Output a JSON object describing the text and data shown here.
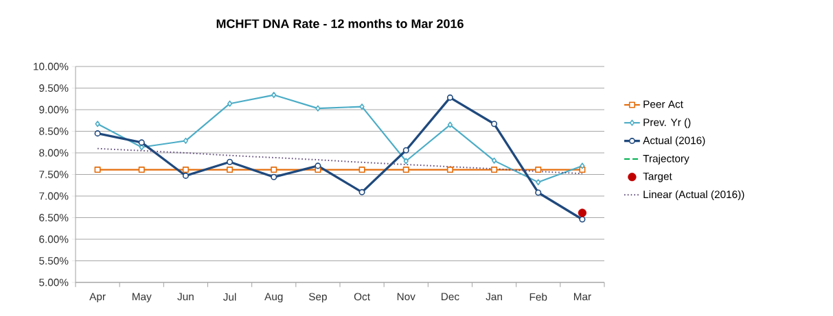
{
  "chart_data": {
    "type": "line",
    "title": "MCHFT DNA Rate - 12 months to Mar 2016",
    "categories": [
      "Apr",
      "May",
      "Jun",
      "Jul",
      "Aug",
      "Sep",
      "Oct",
      "Nov",
      "Dec",
      "Jan",
      "Feb",
      "Mar"
    ],
    "series": [
      {
        "name": "Peer Act",
        "color": "#e46c0a",
        "marker": "square",
        "line_style": "solid",
        "values": [
          7.61,
          7.61,
          7.61,
          7.61,
          7.61,
          7.61,
          7.61,
          7.61,
          7.61,
          7.61,
          7.61,
          7.61
        ]
      },
      {
        "name": "Prev. Yr ()",
        "color": "#4bacc6",
        "marker": "diamond",
        "line_style": "solid",
        "values": [
          8.67,
          8.13,
          8.28,
          9.14,
          9.34,
          9.03,
          9.07,
          7.81,
          8.65,
          7.82,
          7.32,
          7.7
        ]
      },
      {
        "name": "Actual (2016)",
        "color": "#1f497d",
        "marker": "circle",
        "line_style": "solid",
        "values": [
          8.45,
          8.24,
          7.47,
          7.79,
          7.44,
          7.7,
          7.09,
          8.06,
          9.28,
          8.67,
          7.08,
          6.46
        ]
      },
      {
        "name": "Trajectory",
        "color": "#00b050",
        "marker": "none",
        "line_style": "dashed",
        "values": [
          null,
          null,
          null,
          null,
          null,
          null,
          null,
          null,
          null,
          null,
          null,
          null
        ]
      },
      {
        "name": "Target",
        "type": "scatter",
        "color": "#c00000",
        "marker": "circle",
        "values": [
          null,
          null,
          null,
          null,
          null,
          null,
          null,
          null,
          null,
          null,
          null,
          6.61
        ]
      },
      {
        "name": "Linear (Actual (2016))",
        "color": "#604a7b",
        "marker": "none",
        "line_style": "dotted",
        "values": [
          8.1,
          8.05,
          8.0,
          7.94,
          7.89,
          7.84,
          7.78,
          7.73,
          7.68,
          7.63,
          7.57,
          7.52
        ]
      }
    ],
    "ylim": [
      5,
      10
    ],
    "yticks": [
      {
        "value": 5,
        "label": "5.00%"
      },
      {
        "value": 5.5,
        "label": "5.50%"
      },
      {
        "value": 6,
        "label": "6.00%"
      },
      {
        "value": 6.5,
        "label": "6.50%"
      },
      {
        "value": 7,
        "label": "7.00%"
      },
      {
        "value": 7.5,
        "label": "7.50%"
      },
      {
        "value": 8,
        "label": "8.00%"
      },
      {
        "value": 8.5,
        "label": "8.50%"
      },
      {
        "value": 9,
        "label": "9.00%"
      },
      {
        "value": 9.5,
        "label": "9.50%"
      },
      {
        "value": 10,
        "label": "10.00%"
      }
    ],
    "grid": "y",
    "legend": "right"
  }
}
